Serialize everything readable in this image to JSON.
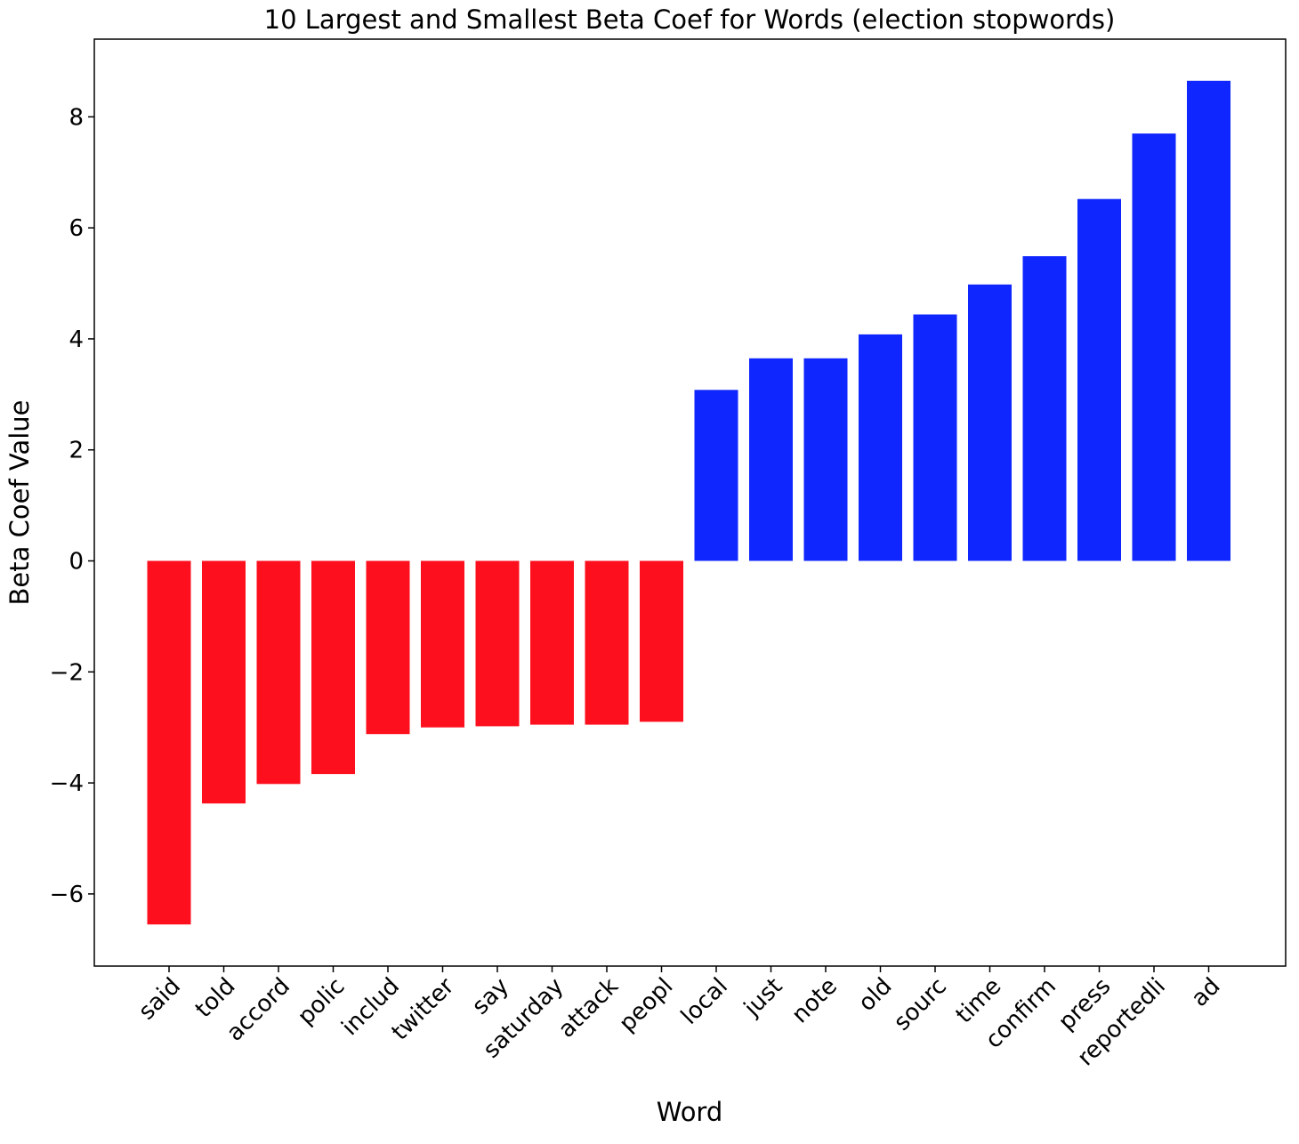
{
  "chart_data": {
    "type": "bar",
    "title": "10 Largest and Smallest Beta Coef for Words (election stopwords)",
    "xlabel": "Word",
    "ylabel": "Beta Coef Value",
    "ylim": [
      -7.3,
      9.4
    ],
    "yticks": [
      -6,
      -4,
      -2,
      0,
      2,
      4,
      6,
      8
    ],
    "ytick_labels": [
      "−6",
      "−4",
      "−2",
      "0",
      "2",
      "4",
      "6",
      "8"
    ],
    "grid": false,
    "legend": "none",
    "categories": [
      "said",
      "told",
      "accord",
      "polic",
      "includ",
      "twitter",
      "say",
      "saturday",
      "attack",
      "peopl",
      "local",
      "just",
      "note",
      "old",
      "sourc",
      "time",
      "confirm",
      "press",
      "reportedli",
      "ad"
    ],
    "values": [
      -6.55,
      -4.37,
      -4.02,
      -3.84,
      -3.12,
      -3.0,
      -2.98,
      -2.95,
      -2.95,
      -2.9,
      3.08,
      3.65,
      3.65,
      4.08,
      4.44,
      4.98,
      5.49,
      6.52,
      7.7,
      8.65
    ],
    "colors": {
      "negative": "#fe0f1e",
      "positive": "#0f26fe"
    }
  }
}
